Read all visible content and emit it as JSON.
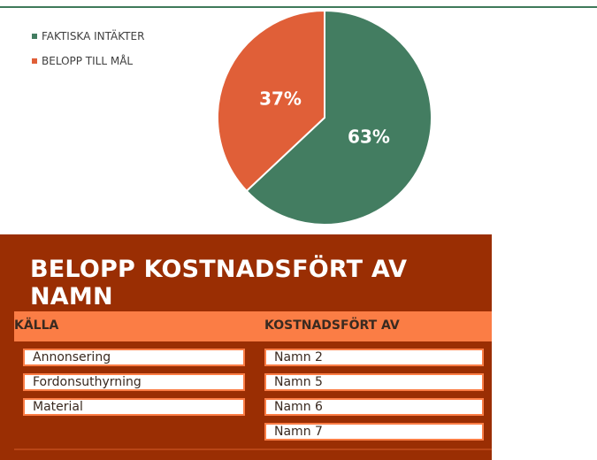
{
  "chart_data": {
    "type": "pie",
    "categories": [
      "FAKTISKA INTÄKTER",
      "BELOPP TILL MÅL"
    ],
    "values": [
      63,
      37
    ],
    "labels": [
      "63%",
      "37%"
    ],
    "colors": [
      "#437d61",
      "#e05f38"
    ],
    "legend": "top-left"
  },
  "slicer": {
    "title": "BELOPP KOSTNADSFÖRT AV NAMN",
    "source_header": "KÄLLA",
    "charged_header": "KOSTNADSFÖRT AV",
    "sources": [
      "Annonsering",
      "Fordonsuthyrning",
      "Material"
    ],
    "charged_by": [
      "Namn 2",
      "Namn 5",
      "Namn 6",
      "Namn 7"
    ]
  }
}
